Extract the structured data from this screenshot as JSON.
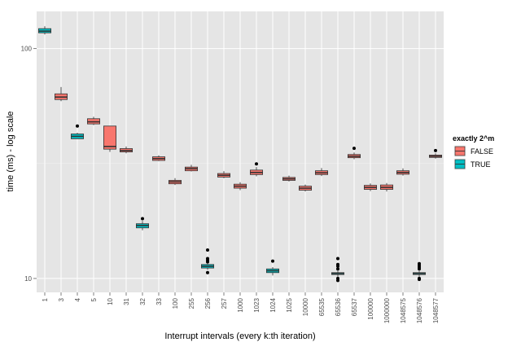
{
  "chart_data": {
    "type": "boxplot",
    "title": "",
    "xlabel": "Interrupt intervals (every k:th iteration)",
    "ylabel": "time (ms) - log scale",
    "y_scale": "log10",
    "ylim": [
      8.7,
      145
    ],
    "y_ticks": [
      10,
      100
    ],
    "y_tick_labels": [
      "10",
      "100"
    ],
    "legend": {
      "title": "exactly 2^m",
      "position": "right",
      "entries": [
        {
          "label": "FALSE",
          "color": "#F8766D"
        },
        {
          "label": "TRUE",
          "color": "#00BFC4"
        }
      ]
    },
    "categories": [
      "1",
      "3",
      "4",
      "5",
      "10",
      "31",
      "32",
      "33",
      "100",
      "255",
      "256",
      "257",
      "1000",
      "1023",
      "1024",
      "1025",
      "10000",
      "65535",
      "65536",
      "65537",
      "100000",
      "1000000",
      "1048575",
      "1048576",
      "1048577"
    ],
    "exactly_pow2": [
      true,
      false,
      true,
      false,
      false,
      false,
      true,
      false,
      false,
      false,
      true,
      false,
      false,
      false,
      true,
      false,
      false,
      false,
      true,
      false,
      false,
      false,
      false,
      true,
      false
    ],
    "boxes": [
      {
        "q1": 117,
        "median": 119,
        "q3": 122,
        "whisker_lo": 115,
        "whisker_hi": 125,
        "outliers": []
      },
      {
        "q1": 60,
        "median": 61.5,
        "q3": 63.5,
        "whisker_lo": 59,
        "whisker_hi": 68,
        "outliers": []
      },
      {
        "q1": 40.5,
        "median": 41.5,
        "q3": 42.5,
        "whisker_lo": 40.5,
        "whisker_hi": 43,
        "outliers": [
          46
        ]
      },
      {
        "q1": 47,
        "median": 48,
        "q3": 49.5,
        "whisker_lo": 46.5,
        "whisker_hi": 50.5,
        "outliers": []
      },
      {
        "q1": 36.5,
        "median": 37.5,
        "q3": 46,
        "whisker_lo": 35.5,
        "whisker_hi": 46,
        "outliers": []
      },
      {
        "q1": 35.5,
        "median": 36,
        "q3": 36.7,
        "whisker_lo": 35,
        "whisker_hi": 37.5,
        "outliers": []
      },
      {
        "q1": 16.6,
        "median": 17,
        "q3": 17.3,
        "whisker_lo": 16.2,
        "whisker_hi": 17.8,
        "outliers": [
          18.2
        ]
      },
      {
        "q1": 32.6,
        "median": 33.2,
        "q3": 33.8,
        "whisker_lo": 32.4,
        "whisker_hi": 34.3,
        "outliers": []
      },
      {
        "q1": 25.8,
        "median": 26.3,
        "q3": 26.7,
        "whisker_lo": 25.5,
        "whisker_hi": 27.3,
        "outliers": []
      },
      {
        "q1": 29.4,
        "median": 30,
        "q3": 30.5,
        "whisker_lo": 29.2,
        "whisker_hi": 31.2,
        "outliers": []
      },
      {
        "q1": 11.1,
        "median": 11.3,
        "q3": 11.5,
        "whisker_lo": 10.9,
        "whisker_hi": 11.6,
        "outliers": [
          10.6,
          11.8,
          12,
          12.2,
          13.3
        ]
      },
      {
        "q1": 27.6,
        "median": 28.1,
        "q3": 28.6,
        "whisker_lo": 27.3,
        "whisker_hi": 29.3,
        "outliers": []
      },
      {
        "q1": 24.7,
        "median": 25.2,
        "q3": 25.7,
        "whisker_lo": 24.2,
        "whisker_hi": 26.2,
        "outliers": []
      },
      {
        "q1": 28.3,
        "median": 28.9,
        "q3": 29.6,
        "whisker_lo": 27.8,
        "whisker_hi": 30.5,
        "outliers": [
          31.5
        ]
      },
      {
        "q1": 10.6,
        "median": 10.8,
        "q3": 11,
        "whisker_lo": 10.3,
        "whisker_hi": 11.2,
        "outliers": [
          11.9
        ]
      },
      {
        "q1": 26.7,
        "median": 27.1,
        "q3": 27.5,
        "whisker_lo": 26.4,
        "whisker_hi": 28,
        "outliers": []
      },
      {
        "q1": 24.2,
        "median": 24.7,
        "q3": 25.2,
        "whisker_lo": 23.9,
        "whisker_hi": 25.6,
        "outliers": []
      },
      {
        "q1": 28.3,
        "median": 28.8,
        "q3": 29.4,
        "whisker_lo": 27.9,
        "whisker_hi": 30.2,
        "outliers": []
      },
      {
        "q1": 10.4,
        "median": 10.5,
        "q3": 10.6,
        "whisker_lo": 10.1,
        "whisker_hi": 10.8,
        "outliers": [
          9.8,
          10,
          11,
          11.3,
          11.5,
          12.2
        ]
      },
      {
        "q1": 33.5,
        "median": 34,
        "q3": 34.6,
        "whisker_lo": 33,
        "whisker_hi": 35.3,
        "outliers": [
          36.8
        ]
      },
      {
        "q1": 24.4,
        "median": 24.9,
        "q3": 25.4,
        "whisker_lo": 24,
        "whisker_hi": 25.9,
        "outliers": []
      },
      {
        "q1": 24.4,
        "median": 24.9,
        "q3": 25.5,
        "whisker_lo": 23.9,
        "whisker_hi": 26,
        "outliers": []
      },
      {
        "q1": 28.4,
        "median": 28.9,
        "q3": 29.4,
        "whisker_lo": 28,
        "whisker_hi": 30.1,
        "outliers": []
      },
      {
        "q1": 10.4,
        "median": 10.5,
        "q3": 10.6,
        "whisker_lo": 10.1,
        "whisker_hi": 10.8,
        "outliers": [
          9.9,
          10,
          11,
          11.2,
          11.4,
          11.6
        ]
      },
      {
        "q1": 33.6,
        "median": 34,
        "q3": 34.4,
        "whisker_lo": 33.2,
        "whisker_hi": 35,
        "outliers": [
          36
        ]
      }
    ],
    "grid": true
  }
}
